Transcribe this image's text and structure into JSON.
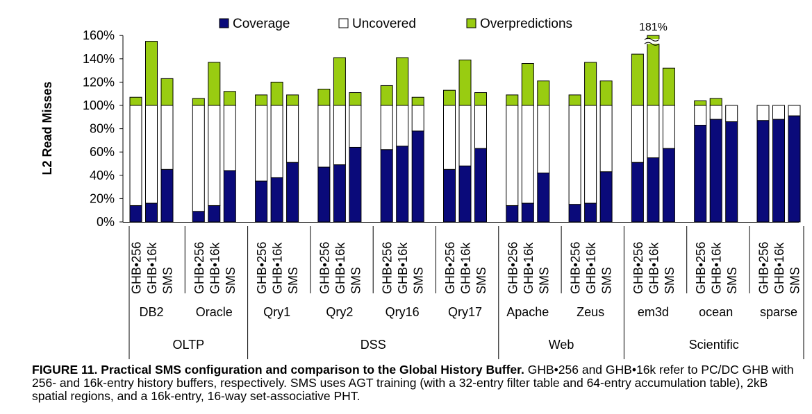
{
  "chart_data": {
    "type": "bar",
    "stacked": true,
    "ylabel": "L2 Read Misses",
    "ylim": [
      0,
      160
    ],
    "yticks": [
      "0%",
      "20%",
      "40%",
      "60%",
      "80%",
      "100%",
      "120%",
      "140%",
      "160%"
    ],
    "grid": false,
    "legend_position": "top",
    "series": [
      {
        "name": "Coverage",
        "color": "#0A0A7A"
      },
      {
        "name": "Uncovered",
        "color": "#FFFFFF"
      },
      {
        "name": "Overpredictions",
        "color": "#99CC11"
      }
    ],
    "categories": [
      "GHB•256",
      "GHB•16k",
      "SMS",
      "GHB•256",
      "GHB•16k",
      "SMS",
      "GHB•256",
      "GHB•16k",
      "SMS",
      "GHB•256",
      "GHB•16k",
      "SMS",
      "GHB•256",
      "GHB•16k",
      "SMS",
      "GHB•256",
      "GHB•16k",
      "SMS",
      "GHB•256",
      "GHB•16k",
      "SMS",
      "GHB•256",
      "GHB•16k",
      "SMS",
      "GHB•256",
      "GHB•16k",
      "SMS",
      "GHB•256",
      "GHB•16k",
      "SMS",
      "GHB•256",
      "GHB•16k",
      "SMS"
    ],
    "workloads": [
      {
        "name": "DB2",
        "coverage": [
          14,
          16,
          45
        ],
        "overpredictions": [
          7,
          55,
          23
        ]
      },
      {
        "name": "Oracle",
        "coverage": [
          9,
          14,
          44
        ],
        "overpredictions": [
          6,
          37,
          12
        ]
      },
      {
        "name": "Qry1",
        "coverage": [
          35,
          38,
          51
        ],
        "overpredictions": [
          9,
          20,
          9
        ]
      },
      {
        "name": "Qry2",
        "coverage": [
          47,
          49,
          64
        ],
        "overpredictions": [
          14,
          41,
          11
        ]
      },
      {
        "name": "Qry16",
        "coverage": [
          62,
          65,
          78
        ],
        "overpredictions": [
          17,
          41,
          7
        ]
      },
      {
        "name": "Qry17",
        "coverage": [
          45,
          48,
          63
        ],
        "overpredictions": [
          13,
          39,
          11
        ]
      },
      {
        "name": "Apache",
        "coverage": [
          14,
          16,
          42
        ],
        "overpredictions": [
          9,
          36,
          21
        ]
      },
      {
        "name": "Zeus",
        "coverage": [
          15,
          16,
          43
        ],
        "overpredictions": [
          9,
          37,
          21
        ]
      },
      {
        "name": "em3d",
        "coverage": [
          51,
          55,
          63
        ],
        "overpredictions": [
          44,
          81,
          32
        ]
      },
      {
        "name": "ocean",
        "coverage": [
          83,
          88,
          86
        ],
        "overpredictions": [
          4,
          6,
          0
        ]
      },
      {
        "name": "sparse",
        "coverage": [
          87,
          88,
          91
        ],
        "overpredictions": [
          0,
          0,
          0
        ]
      }
    ],
    "groups": [
      {
        "name": "OLTP",
        "workloads": [
          "DB2",
          "Oracle"
        ]
      },
      {
        "name": "DSS",
        "workloads": [
          "Qry1",
          "Qry2",
          "Qry16",
          "Qry17"
        ]
      },
      {
        "name": "Web",
        "workloads": [
          "Apache",
          "Zeus"
        ]
      },
      {
        "name": "Scientific",
        "workloads": [
          "em3d",
          "ocean",
          "sparse"
        ]
      }
    ],
    "annotations": [
      {
        "text": "181%",
        "workload": "em3d",
        "bar": "GHB•16k",
        "value": 181,
        "broken_bar": true
      }
    ]
  },
  "caption": {
    "bold": "FIGURE 11. Practical SMS configuration and comparison to the Global History Buffer.",
    "text": " GHB•256 and GHB•16k refer to PC/DC GHB with 256- and 16k-entry history buffers, respectively. SMS uses AGT training (with a 32-entry filter table and 64-entry accumulation table), 2kB spatial regions, and a 16k-entry, 16-way set-associative PHT."
  }
}
